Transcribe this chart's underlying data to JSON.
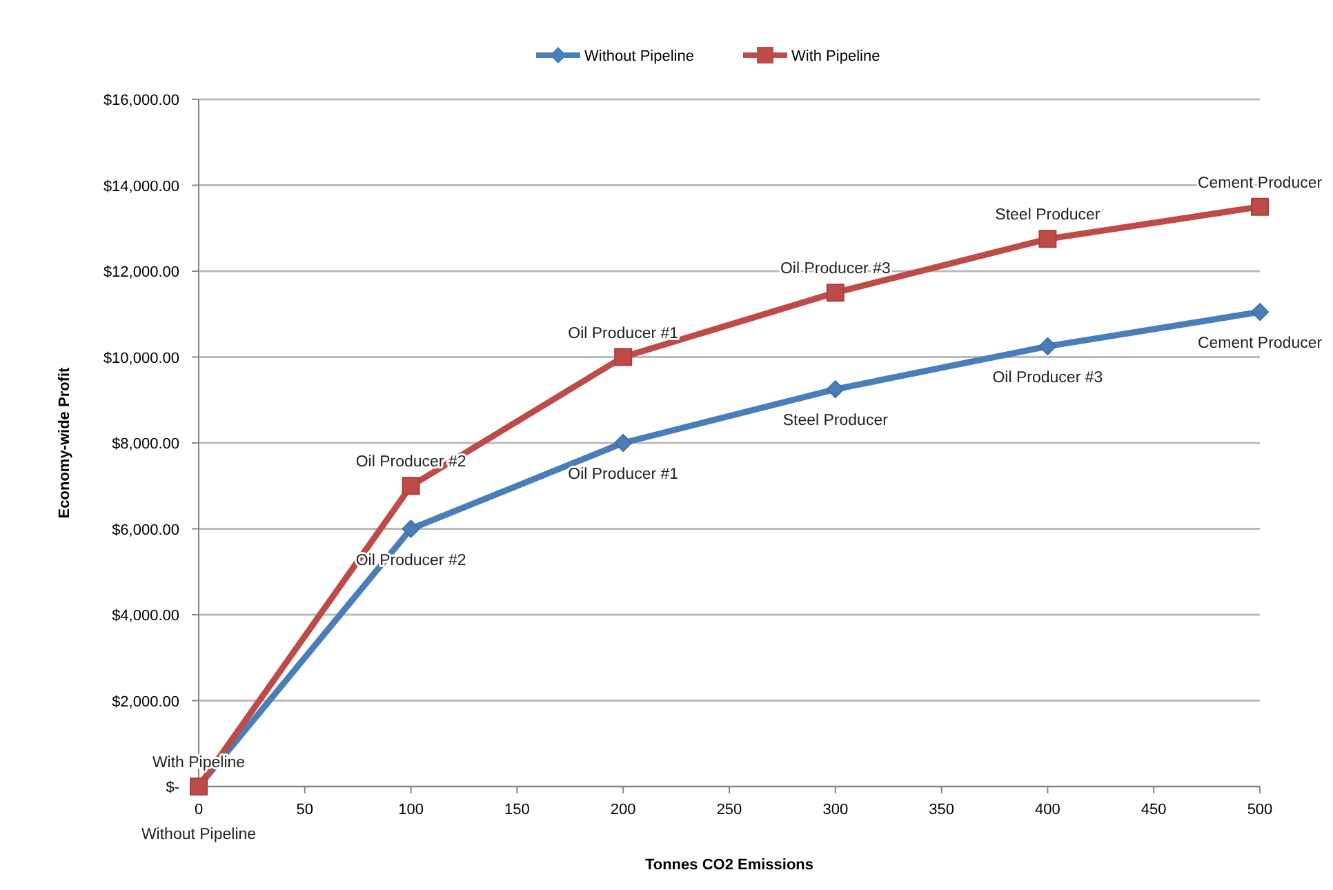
{
  "chart_data": {
    "type": "line",
    "xlabel": "Tonnes CO2 Emissions",
    "ylabel": "Economy-wide Profit",
    "x": [
      0,
      100,
      200,
      300,
      400,
      500
    ],
    "series": [
      {
        "name": "Without Pipeline",
        "color": "#4a7ebb",
        "marker": "diamond",
        "values": [
          0,
          6000,
          8000,
          9250,
          10250,
          11050
        ]
      },
      {
        "name": "With Pipeline",
        "color": "#be4b48",
        "marker": "square",
        "values": [
          0,
          7000,
          10000,
          11500,
          12750,
          13500
        ]
      }
    ],
    "annotations": [
      {
        "text": "Without Pipeline",
        "x": 0,
        "y": 0
      },
      {
        "text": "Oil Producer #2",
        "x": 100,
        "y": 6000
      },
      {
        "text": "Oil Producer #1",
        "x": 200,
        "y": 8000
      },
      {
        "text": "Steel Producer",
        "x": 300,
        "y": 9250
      },
      {
        "text": "Oil Producer #3",
        "x": 400,
        "y": 10250
      },
      {
        "text": "Cement Producer",
        "x": 500,
        "y": 11050
      },
      {
        "text": "With Pipeline",
        "x": 0,
        "y": 0
      },
      {
        "text": "Oil Producer #2",
        "x": 100,
        "y": 7000
      },
      {
        "text": "Oil Producer #1",
        "x": 200,
        "y": 10000
      },
      {
        "text": "Oil Producer #3",
        "x": 300,
        "y": 11500
      },
      {
        "text": "Steel Producer",
        "x": 400,
        "y": 12750
      },
      {
        "text": "Cement Producer",
        "x": 500,
        "y": 13500
      }
    ],
    "xlim": [
      0,
      500
    ],
    "xticks": [
      0,
      50,
      100,
      150,
      200,
      250,
      300,
      350,
      400,
      450,
      500
    ],
    "ylim": [
      0,
      16000
    ],
    "yticks": [
      {
        "value": 0,
        "label": "$-"
      },
      {
        "value": 2000,
        "label": "$2,000.00"
      },
      {
        "value": 4000,
        "label": "$4,000.00"
      },
      {
        "value": 6000,
        "label": "$6,000.00"
      },
      {
        "value": 8000,
        "label": "$8,000.00"
      },
      {
        "value": 10000,
        "label": "$10,000.00"
      },
      {
        "value": 12000,
        "label": "$12,000.00"
      },
      {
        "value": 14000,
        "label": "$14,000.00"
      },
      {
        "value": 16000,
        "label": "$16,000.00"
      }
    ],
    "grid": "y",
    "legend": "top",
    "line_style": "solid"
  }
}
